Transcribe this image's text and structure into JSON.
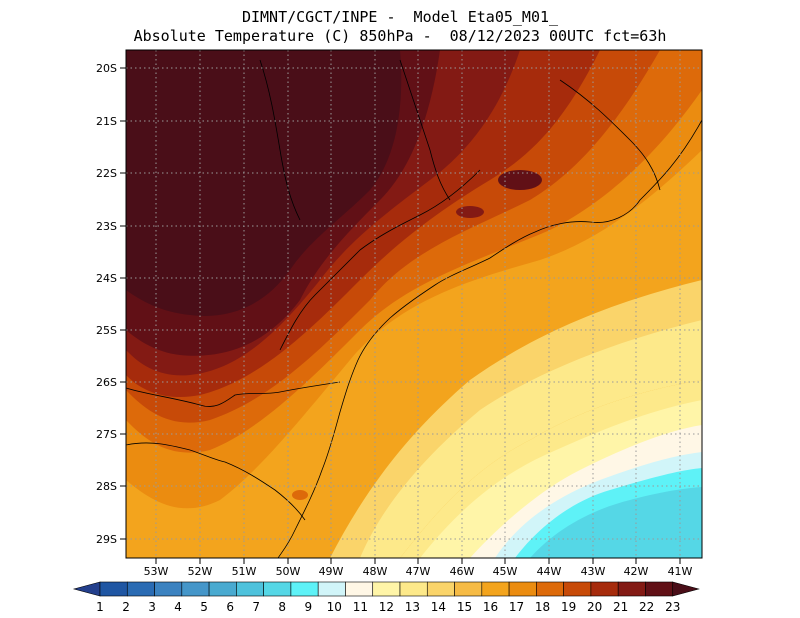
{
  "header": {
    "line1": "DIMNT/CGCT/INPE -  Model Eta05_M01_",
    "line2": "Absolute Temperature (C) 850hPa -  08/12/2023 00UTC fct=63h"
  },
  "map": {
    "lat_labels": [
      "20S",
      "21S",
      "22S",
      "23S",
      "24S",
      "25S",
      "26S",
      "27S",
      "28S",
      "29S"
    ],
    "lon_labels": [
      "53W",
      "52W",
      "51W",
      "50W",
      "49W",
      "48W",
      "47W",
      "46W",
      "45W",
      "44W",
      "43W",
      "42W",
      "41W"
    ],
    "lat_range": [
      -29.4,
      -19.9
    ],
    "lon_range": [
      -53.8,
      -40.6
    ],
    "grid": true
  },
  "colorbar": {
    "labels": [
      "1",
      "2",
      "3",
      "4",
      "5",
      "6",
      "7",
      "8",
      "9",
      "10",
      "11",
      "12",
      "13",
      "14",
      "15",
      "16",
      "17",
      "18",
      "19",
      "20",
      "21",
      "22",
      "23"
    ],
    "colors": [
      "#233f8c",
      "#1f56a3",
      "#2a6bb3",
      "#3b82c0",
      "#4596c9",
      "#49aad0",
      "#4ec2dc",
      "#55d7e6",
      "#5ef2f7",
      "#d1f5f9",
      "#fff7e6",
      "#fff5a8",
      "#fde98a",
      "#fad46a",
      "#f6bb45",
      "#f3a41d",
      "#eb8c10",
      "#dd6a0a",
      "#c74a08",
      "#a62b0c",
      "#831a14",
      "#611016",
      "#4a0e18"
    ]
  }
}
